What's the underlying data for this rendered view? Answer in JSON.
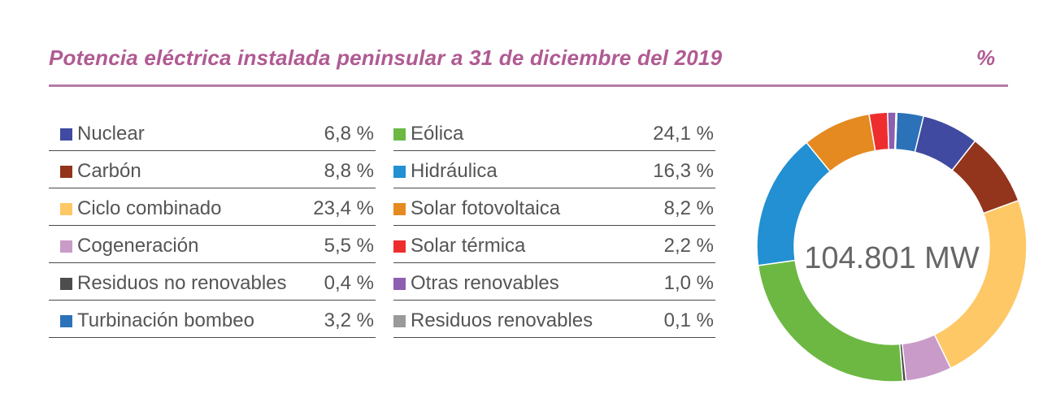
{
  "title": "Potencia eléctrica instalada peninsular a 31 de diciembre del 2019",
  "unit": "%",
  "chart_data": {
    "type": "pie",
    "style": "donut",
    "title": "Potencia eléctrica instalada peninsular a 31 de diciembre del 2019",
    "center_label": "104.801 MW",
    "total_mw": 104801,
    "unit": "%",
    "slices_clockwise_from_top": [
      {
        "name": "Turbinación bombeo",
        "value": 3.2,
        "color": "#2b72b8"
      },
      {
        "name": "Nuclear",
        "value": 6.8,
        "color": "#3f4aa0"
      },
      {
        "name": "Carbón",
        "value": 8.8,
        "color": "#93341c"
      },
      {
        "name": "Ciclo combinado",
        "value": 23.4,
        "color": "#fec867"
      },
      {
        "name": "Cogeneración",
        "value": 5.5,
        "color": "#c99bc8"
      },
      {
        "name": "Residuos no renovables",
        "value": 0.4,
        "color": "#4d4d4d"
      },
      {
        "name": "Eólica",
        "value": 24.1,
        "color": "#6cb843"
      },
      {
        "name": "Hidráulica",
        "value": 16.3,
        "color": "#2290d2"
      },
      {
        "name": "Solar fotovoltaica",
        "value": 8.2,
        "color": "#e58a20"
      },
      {
        "name": "Solar térmica",
        "value": 2.2,
        "color": "#ee2e2e"
      },
      {
        "name": "Otras renovables",
        "value": 1.0,
        "color": "#8c5fb0"
      },
      {
        "name": "Residuos renovables",
        "value": 0.1,
        "color": "#9a9a9a"
      }
    ]
  },
  "legend": {
    "left": [
      {
        "label": "Nuclear",
        "value": "6,8 %",
        "color": "#3f4aa0"
      },
      {
        "label": "Carbón",
        "value": "8,8 %",
        "color": "#93341c"
      },
      {
        "label": "Ciclo combinado",
        "value": "23,4 %",
        "color": "#fec867"
      },
      {
        "label": "Cogeneración",
        "value": "5,5 %",
        "color": "#c99bc8"
      },
      {
        "label": "Residuos no renovables",
        "value": "0,4 %",
        "color": "#4d4d4d"
      },
      {
        "label": "Turbinación bombeo",
        "value": "3,2 %",
        "color": "#2b72b8"
      }
    ],
    "right": [
      {
        "label": "Eólica",
        "value": "24,1 %",
        "color": "#6cb843"
      },
      {
        "label": "Hidráulica",
        "value": "16,3 %",
        "color": "#2290d2"
      },
      {
        "label": "Solar fotovoltaica",
        "value": "8,2 %",
        "color": "#e58a20"
      },
      {
        "label": "Solar térmica",
        "value": "2,2 %",
        "color": "#ee2e2e"
      },
      {
        "label": "Otras renovables",
        "value": "1,0 %",
        "color": "#8c5fb0"
      },
      {
        "label": "Residuos renovables",
        "value": "0,1 %",
        "color": "#9a9a9a"
      }
    ]
  }
}
